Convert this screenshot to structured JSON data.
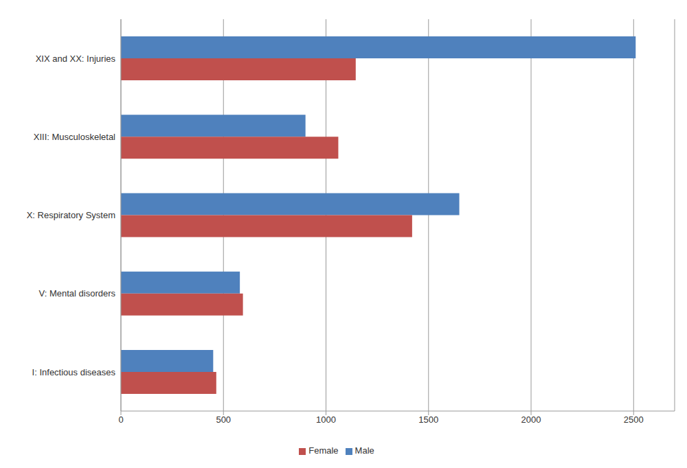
{
  "chart_data": {
    "type": "bar",
    "orientation": "horizontal",
    "categories": [
      "XIX and XX: Injuries",
      "XIII: Musculoskeletal",
      "X: Respiratory System",
      "V: Mental disorders",
      "I: Infectious diseases"
    ],
    "series": [
      {
        "name": "Male",
        "color": "#4f81bd",
        "values": [
          2510,
          900,
          1650,
          580,
          450
        ]
      },
      {
        "name": "Female",
        "color": "#c0504d",
        "values": [
          1145,
          1060,
          1420,
          595,
          465
        ]
      }
    ],
    "xlim": [
      0,
      2700
    ],
    "xticks": [
      0,
      500,
      1000,
      1500,
      2000,
      2500
    ],
    "grid": true,
    "legend": "bottom"
  }
}
